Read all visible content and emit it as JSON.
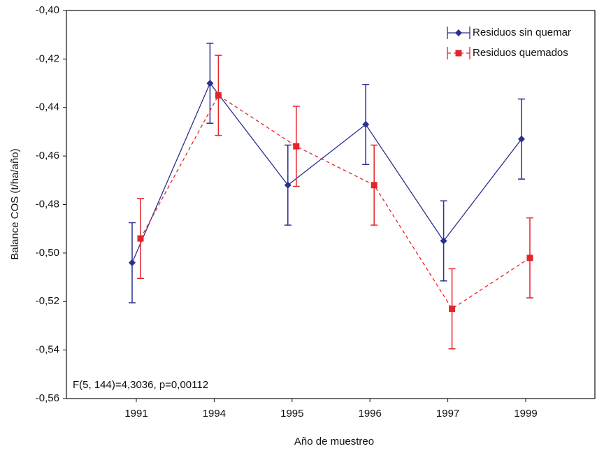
{
  "chart_data": {
    "type": "line",
    "x_label": "Año de muestreo",
    "y_label": "Balance COS (t/ha/año)",
    "annotation": "F(5, 144)=4,3036, p=0,00112",
    "categories": [
      "1991",
      "1994",
      "1995",
      "1996",
      "1997",
      "1999"
    ],
    "series": [
      {
        "name": "Residuos sin quemar",
        "color": "#2b2f8f",
        "linestyle": "solid",
        "marker": "diamond",
        "values": [
          -0.504,
          -0.43,
          -0.472,
          -0.447,
          -0.495,
          -0.453
        ],
        "errors": [
          0.0165,
          0.0165,
          0.0165,
          0.0165,
          0.0165,
          0.0165
        ]
      },
      {
        "name": "Residuos quemados",
        "color": "#e3242b",
        "linestyle": "dashed",
        "marker": "square",
        "values": [
          -0.494,
          -0.435,
          -0.456,
          -0.472,
          -0.523,
          -0.502
        ],
        "errors": [
          0.0165,
          0.0165,
          0.0165,
          0.0165,
          0.0165,
          0.0165
        ]
      }
    ],
    "ylim": [
      -0.56,
      -0.4
    ],
    "yticks": [
      {
        "value": -0.56,
        "label": "-0,56"
      },
      {
        "value": -0.54,
        "label": "-0,54"
      },
      {
        "value": -0.52,
        "label": "-0,52"
      },
      {
        "value": -0.5,
        "label": "-0,50"
      },
      {
        "value": -0.48,
        "label": "-0,48"
      },
      {
        "value": -0.46,
        "label": "-0,46"
      },
      {
        "value": -0.44,
        "label": "-0,44"
      },
      {
        "value": -0.42,
        "label": "-0,42"
      },
      {
        "value": -0.4,
        "label": "-0,40"
      }
    ],
    "legend": "upper right",
    "grid": false
  }
}
